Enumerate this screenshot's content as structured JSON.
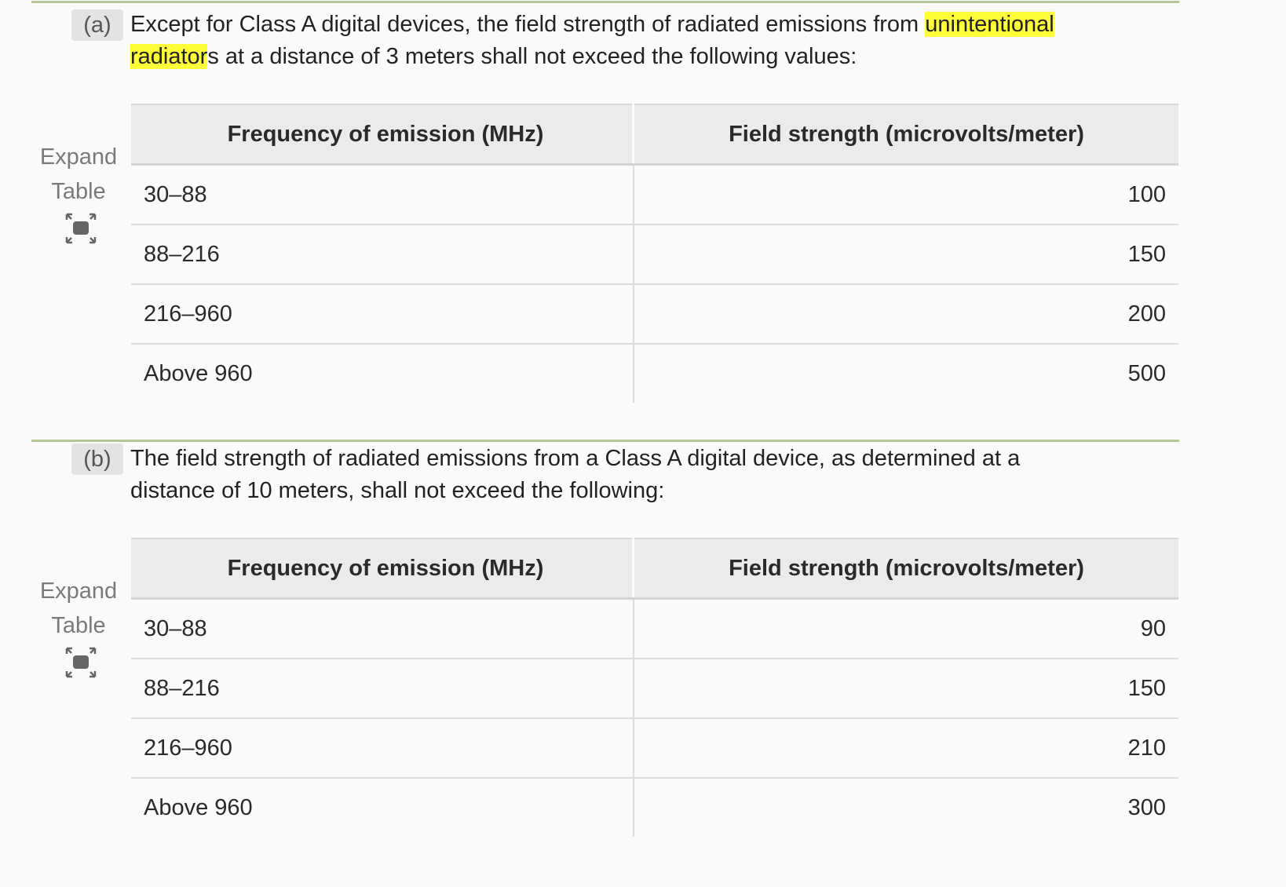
{
  "sections": [
    {
      "label": "(a)",
      "text_before": "Except for Class A digital devices, the field strength of radiated emissions from ",
      "highlight_1": "unintentional",
      "highlight_2": "radiator",
      "text_after": "s at a distance of 3 meters shall not exceed the following values:",
      "expand": {
        "line1": "Expand",
        "line2": "Table",
        "icon": "expand-arrows-icon"
      },
      "table": {
        "headers": [
          "Frequency of emission (MHz)",
          "Field strength (microvolts/meter)"
        ],
        "rows": [
          [
            "30–88",
            "100"
          ],
          [
            "88–216",
            "150"
          ],
          [
            "216–960",
            "200"
          ],
          [
            "Above 960",
            "500"
          ]
        ]
      }
    },
    {
      "label": "(b)",
      "text": "The field strength of radiated emissions from a Class A digital device, as determined at a distance of 10 meters, shall not exceed the following:",
      "expand": {
        "line1": "Expand",
        "line2": "Table",
        "icon": "expand-arrows-icon"
      },
      "table": {
        "headers": [
          "Frequency of emission (MHz)",
          "Field strength (microvolts/meter)"
        ],
        "rows": [
          [
            "30–88",
            "90"
          ],
          [
            "88–216",
            "150"
          ],
          [
            "216–960",
            "210"
          ],
          [
            "Above 960",
            "300"
          ]
        ]
      }
    }
  ],
  "colors": {
    "rule": "#b7c79a",
    "highlight": "#ffff3a",
    "label_bg": "#e3e3e3",
    "header_bg": "#ebebeb"
  }
}
